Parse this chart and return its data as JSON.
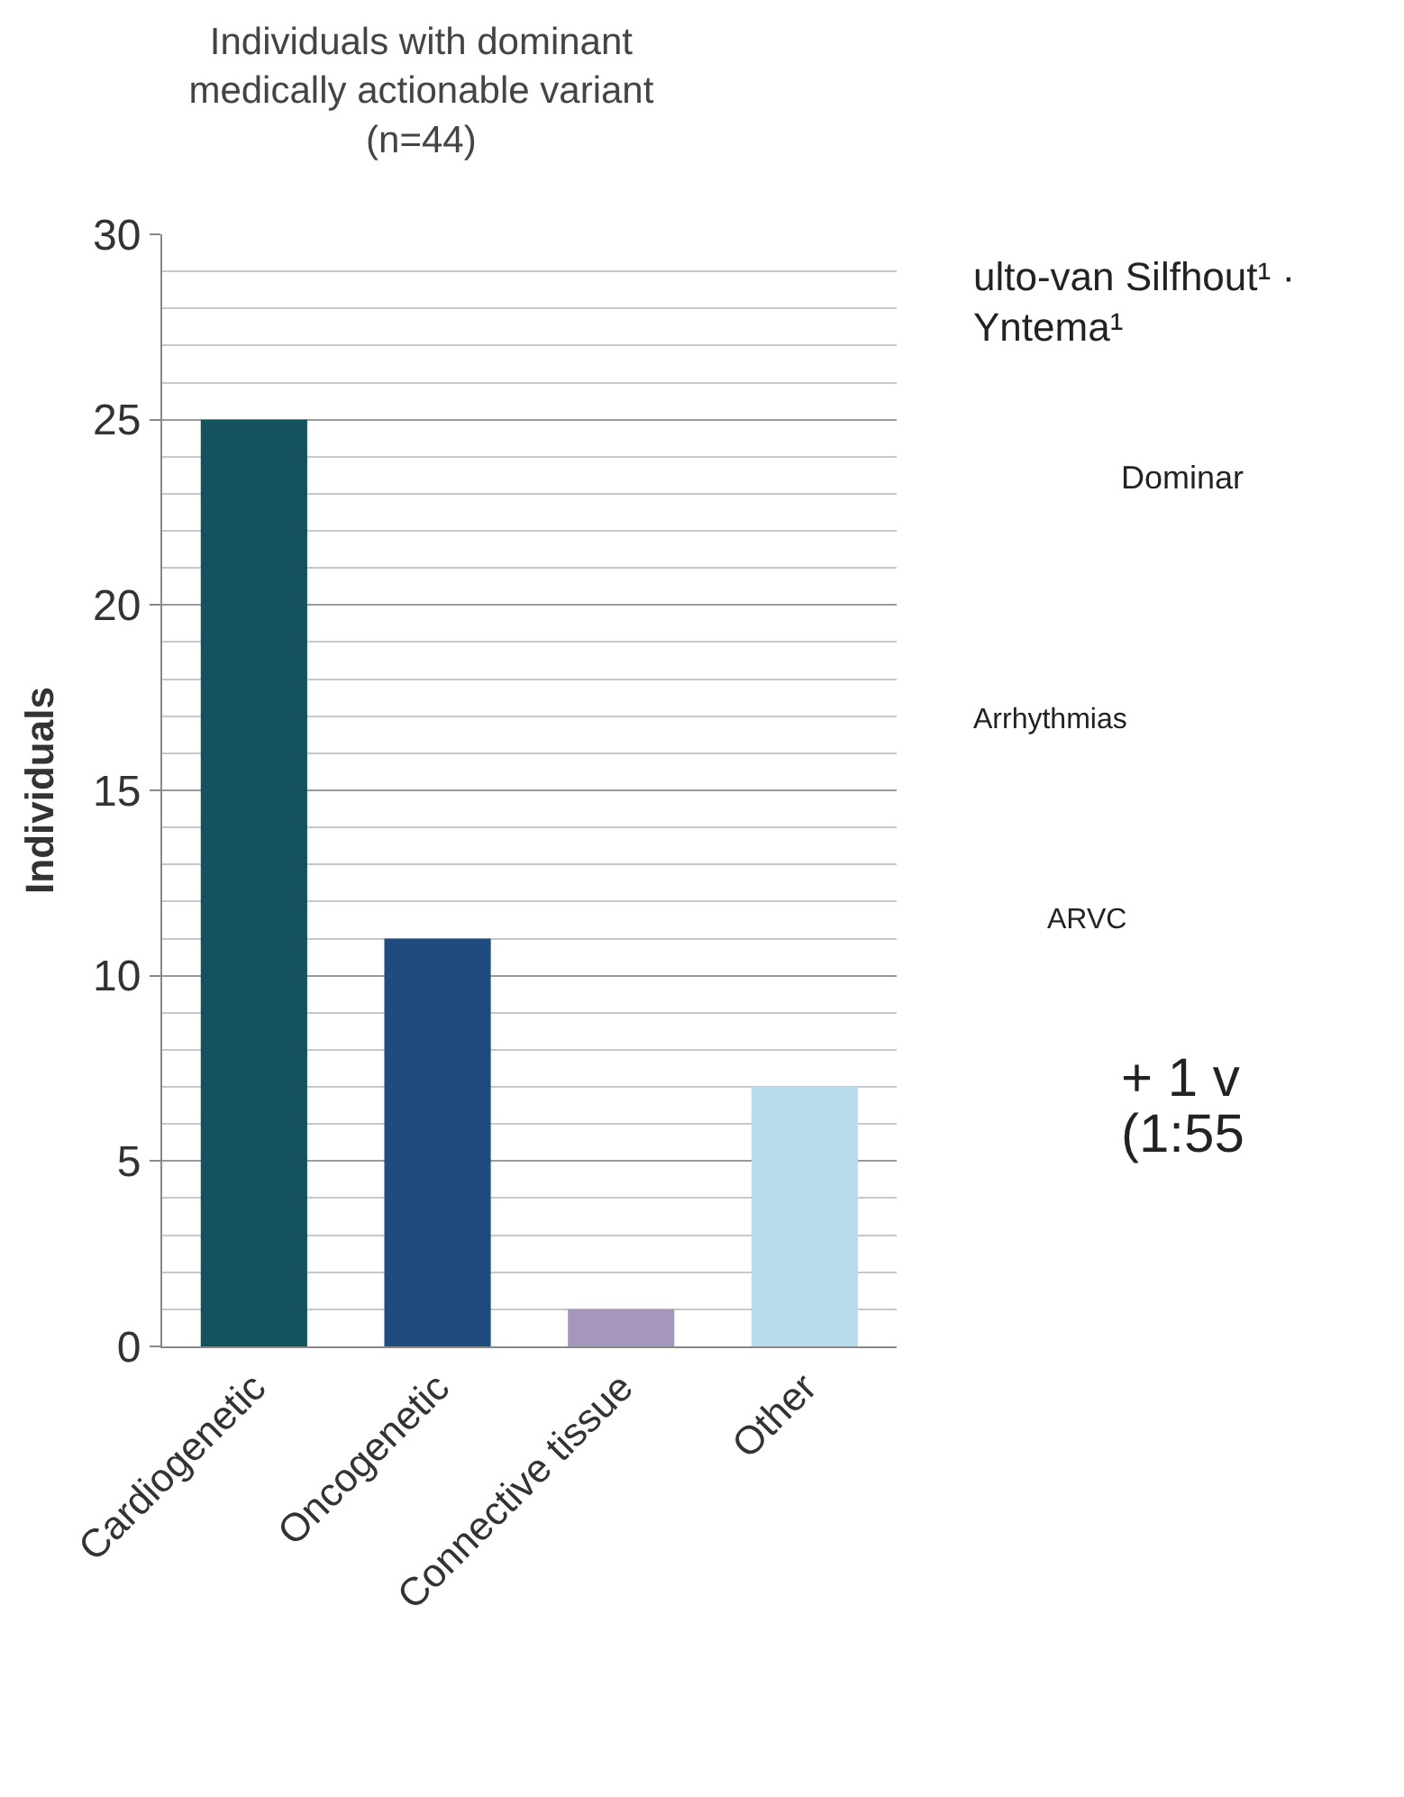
{
  "chart_data": {
    "type": "bar",
    "title": "Individuals with dominant medically actionable variant (n=44)",
    "ylabel": "Individuals",
    "categories": [
      "Cardiogenetic",
      "Oncogenetic",
      "Connective tissue",
      "Other"
    ],
    "values": [
      25,
      11,
      1,
      7
    ],
    "colors": [
      "#14535e",
      "#1e4b80",
      "#a496bc",
      "#b8dcec"
    ],
    "ylim": [
      0,
      30
    ],
    "yticks": [
      0,
      5,
      10,
      15,
      20,
      25,
      30
    ],
    "grid": "y",
    "annotations": [
      "ulto-van Silfhout¹ ·",
      "Yntema¹",
      "Dominar",
      "Arrhythmias",
      "ARVC",
      "+ 1 v",
      "(1:55"
    ]
  }
}
